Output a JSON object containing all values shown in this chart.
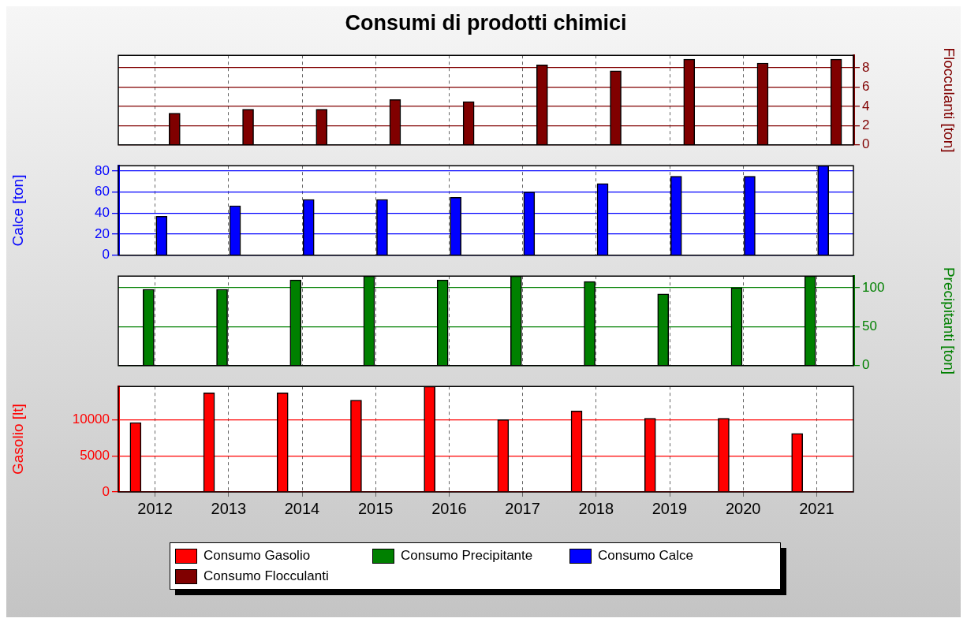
{
  "chart_data": [
    {
      "type": "bar",
      "title": "Consumi di prodotti chimici",
      "categories": [
        "2012",
        "2013",
        "2014",
        "2015",
        "2016",
        "2017",
        "2018",
        "2019",
        "2020",
        "2021"
      ],
      "y2label": "Flocculanti [ton]",
      "y2lim": [
        0,
        9.3
      ],
      "y2ticks": [
        0,
        2,
        4,
        6,
        8
      ],
      "grid": true,
      "legend": "bottom",
      "tick_labels": "y",
      "series": [
        {
          "name": "Consumo Flocculanti",
          "color": "#800000",
          "axis": "y2",
          "values": [
            3.3,
            3.7,
            3.7,
            4.7,
            4.5,
            8.3,
            7.7,
            8.9,
            8.5,
            8.9
          ]
        }
      ]
    },
    {
      "type": "bar",
      "categories": [
        "2012",
        "2013",
        "2014",
        "2015",
        "2016",
        "2017",
        "2018",
        "2019",
        "2020",
        "2021"
      ],
      "ylabel": "Calce [ton]",
      "ylim": [
        0,
        85
      ],
      "yticks": [
        0,
        20,
        40,
        60,
        80
      ],
      "grid": true,
      "legend": "bottom",
      "tick_labels": "y",
      "series": [
        {
          "name": "Consumo Calce",
          "color": "#0000ff",
          "values": [
            37,
            47,
            53,
            53,
            55,
            60,
            68,
            75,
            75,
            85
          ]
        }
      ]
    },
    {
      "type": "bar",
      "categories": [
        "2012",
        "2013",
        "2014",
        "2015",
        "2016",
        "2017",
        "2018",
        "2019",
        "2020",
        "2021"
      ],
      "y2label": "Precipitanti [ton]",
      "y2lim": [
        0,
        115
      ],
      "y2ticks": [
        0,
        50,
        100
      ],
      "grid": true,
      "legend": "bottom",
      "tick_labels": "y",
      "series": [
        {
          "name": "Consumo Precipitante",
          "color": "#008000",
          "axis": "y2",
          "values": [
            98,
            98,
            110,
            115,
            110,
            115,
            108,
            92,
            100,
            115
          ]
        }
      ]
    },
    {
      "type": "bar",
      "categories": [
        "2012",
        "2013",
        "2014",
        "2015",
        "2016",
        "2017",
        "2018",
        "2019",
        "2020",
        "2021"
      ],
      "ylabel": "Gasolio [lt]",
      "ylim": [
        0,
        14600
      ],
      "yticks": [
        0,
        5000,
        10000
      ],
      "grid": true,
      "legend": "bottom",
      "series": [
        {
          "name": "Consumo Gasolio",
          "color": "#ff0000",
          "values": [
            9600,
            13700,
            13700,
            12700,
            14600,
            10000,
            11200,
            10200,
            10200,
            8100
          ]
        }
      ]
    }
  ]
}
